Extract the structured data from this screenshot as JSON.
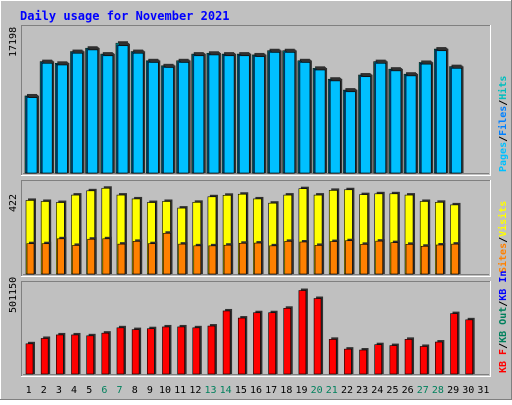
{
  "title": "Daily usage for November 2021",
  "colors": {
    "background": "#c0c0c0",
    "title_text": "#0000ff",
    "hits": "#00bfbf",
    "files": "#0080ff",
    "pages": "#00c0ff",
    "visits": "#ffff00",
    "sites": "#ff8000",
    "kb_in": "#ff0000",
    "kb_out": "#ff4040",
    "weekend_label": "#00805c"
  },
  "chart_data": [
    {
      "type": "bar",
      "panel": "top",
      "ymax_label": "17198",
      "ylim": [
        0,
        17198
      ],
      "right_legend": [
        {
          "text": "Hits",
          "color": "#00bfbf"
        },
        {
          "text": "/",
          "color": "#000000"
        },
        {
          "text": "Files",
          "color": "#0080ff"
        },
        {
          "text": "/",
          "color": "#000000"
        },
        {
          "text": "Pages",
          "color": "#00c0ff"
        }
      ],
      "categories": [
        "1",
        "2",
        "3",
        "4",
        "5",
        "6",
        "7",
        "8",
        "9",
        "10",
        "11",
        "12",
        "13",
        "14",
        "15",
        "16",
        "17",
        "18",
        "19",
        "20",
        "21",
        "22",
        "23",
        "24",
        "25",
        "26",
        "27",
        "28",
        "29",
        "30",
        "31"
      ],
      "series": [
        {
          "name": "Hits",
          "values": [
            9200,
            13300,
            13100,
            14500,
            14900,
            14200,
            15500,
            14500,
            13400,
            12800,
            13400,
            14200,
            14300,
            14200,
            14200,
            14100,
            14600,
            14600,
            13400,
            12500,
            11200,
            9900,
            11700,
            13300,
            12400,
            11800,
            13200,
            14800,
            12700,
            null,
            null
          ]
        },
        {
          "name": "Files",
          "values": [
            9100,
            13200,
            13000,
            14400,
            14800,
            14100,
            15300,
            14400,
            13300,
            12700,
            13300,
            14100,
            14200,
            14100,
            14100,
            14000,
            14500,
            14500,
            13300,
            12400,
            11100,
            9800,
            11600,
            13200,
            12300,
            11700,
            13100,
            14700,
            12600,
            null,
            null
          ]
        },
        {
          "name": "Pages",
          "values": [
            9000,
            13100,
            12900,
            14300,
            14700,
            14000,
            15200,
            14300,
            13200,
            12600,
            13200,
            14000,
            14100,
            14000,
            14000,
            13900,
            14400,
            14400,
            13200,
            12300,
            11000,
            9700,
            11500,
            13100,
            12200,
            11600,
            13000,
            14600,
            12500,
            null,
            null
          ]
        }
      ]
    },
    {
      "type": "bar",
      "panel": "middle",
      "ymax_label": "422",
      "ylim": [
        0,
        422
      ],
      "right_legend": [
        {
          "text": "Visits",
          "color": "#ffff00"
        },
        {
          "text": "/",
          "color": "#000000"
        },
        {
          "text": "Sites",
          "color": "#ff8000"
        }
      ],
      "categories": [
        "1",
        "2",
        "3",
        "4",
        "5",
        "6",
        "7",
        "8",
        "9",
        "10",
        "11",
        "12",
        "13",
        "14",
        "15",
        "16",
        "17",
        "18",
        "19",
        "20",
        "21",
        "22",
        "23",
        "24",
        "25",
        "26",
        "27",
        "28",
        "29",
        "30",
        "31"
      ],
      "series": [
        {
          "name": "Visits",
          "values": [
            345,
            340,
            335,
            370,
            390,
            402,
            370,
            352,
            335,
            340,
            309,
            336,
            362,
            369,
            374,
            352,
            332,
            370,
            400,
            370,
            392,
            395,
            372,
            376,
            376,
            370,
            340,
            336,
            324,
            null,
            null
          ]
        },
        {
          "name": "Sites",
          "values": [
            142,
            142,
            165,
            134,
            163,
            165,
            140,
            153,
            142,
            191,
            140,
            132,
            132,
            135,
            144,
            145,
            132,
            153,
            150,
            134,
            152,
            156,
            139,
            154,
            147,
            139,
            130,
            136,
            140,
            null,
            null
          ]
        }
      ]
    },
    {
      "type": "bar",
      "panel": "bottom",
      "ymax_label": "501150",
      "ylim": [
        0,
        501150
      ],
      "right_legend": [
        {
          "text": "KB In",
          "color": "#0000ff"
        },
        {
          "text": "/",
          "color": "#000000"
        },
        {
          "text": "KB Out",
          "color": "#00805c"
        },
        {
          "text": "/",
          "color": "#000000"
        },
        {
          "text": "KB F",
          "color": "#ff0000"
        }
      ],
      "categories": [
        "1",
        "2",
        "3",
        "4",
        "5",
        "6",
        "7",
        "8",
        "9",
        "10",
        "11",
        "12",
        "13",
        "14",
        "15",
        "16",
        "17",
        "18",
        "19",
        "20",
        "21",
        "22",
        "23",
        "24",
        "25",
        "26",
        "27",
        "28",
        "29",
        "30",
        "31"
      ],
      "series": [
        {
          "name": "KB F",
          "values": [
            170000,
            200000,
            220000,
            220000,
            215000,
            230000,
            260000,
            250000,
            255000,
            265000,
            265000,
            260000,
            270000,
            355000,
            315000,
            345000,
            345000,
            370000,
            470000,
            425000,
            195000,
            140000,
            135000,
            165000,
            160000,
            195000,
            155000,
            180000,
            340000,
            305000,
            null
          ]
        }
      ]
    }
  ],
  "x_axis": {
    "labels": [
      "1",
      "2",
      "3",
      "4",
      "5",
      "6",
      "7",
      "8",
      "9",
      "10",
      "11",
      "12",
      "13",
      "14",
      "15",
      "16",
      "17",
      "18",
      "19",
      "20",
      "21",
      "22",
      "23",
      "24",
      "25",
      "26",
      "27",
      "28",
      "29",
      "30",
      "31"
    ],
    "weekend_days": [
      "6",
      "7",
      "13",
      "14",
      "20",
      "21",
      "27",
      "28"
    ]
  }
}
